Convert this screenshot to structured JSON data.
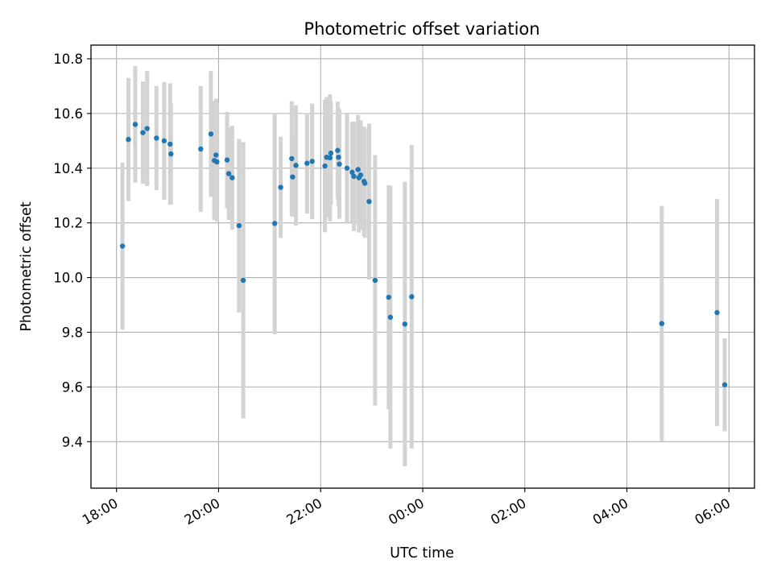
{
  "chart_data": {
    "type": "scatter",
    "title": "Photometric offset variation",
    "xlabel": "UTC time",
    "ylabel": "Photometric offset",
    "xlim": [
      "2024-01-01T17:30",
      "2024-01-02T06:30"
    ],
    "ylim": [
      9.23,
      10.85
    ],
    "grid": true,
    "x_ticks": [
      {
        "value": "2024-01-01T18:00",
        "label": "18:00"
      },
      {
        "value": "2024-01-01T20:00",
        "label": "20:00"
      },
      {
        "value": "2024-01-01T22:00",
        "label": "22:00"
      },
      {
        "value": "2024-01-02T00:00",
        "label": "00:00"
      },
      {
        "value": "2024-01-02T02:00",
        "label": "02:00"
      },
      {
        "value": "2024-01-02T04:00",
        "label": "04:00"
      },
      {
        "value": "2024-01-02T06:00",
        "label": "06:00"
      }
    ],
    "y_ticks": [
      {
        "value": 9.4,
        "label": "9.4"
      },
      {
        "value": 9.6,
        "label": "9.6"
      },
      {
        "value": 9.8,
        "label": "9.8"
      },
      {
        "value": 10.0,
        "label": "10.0"
      },
      {
        "value": 10.2,
        "label": "10.2"
      },
      {
        "value": 10.4,
        "label": "10.4"
      },
      {
        "value": 10.6,
        "label": "10.6"
      },
      {
        "value": 10.8,
        "label": "10.8"
      }
    ],
    "colors": {
      "marker": "#1f77b4",
      "errorbar": "#d3d3d3"
    },
    "series": [
      {
        "x": [
          "2024-01-01T18:07",
          "2024-01-01T18:14",
          "2024-01-01T18:22",
          "2024-01-01T18:31",
          "2024-01-01T18:36",
          "2024-01-01T18:47",
          "2024-01-01T18:56",
          "2024-01-01T19:03",
          "2024-01-01T19:04",
          "2024-01-01T19:39",
          "2024-01-01T19:51",
          "2024-01-01T19:55",
          "2024-01-01T19:57",
          "2024-01-01T19:58",
          "2024-01-01T20:10",
          "2024-01-01T20:12",
          "2024-01-01T20:16",
          "2024-01-01T20:24",
          "2024-01-01T20:29",
          "2024-01-01T21:06",
          "2024-01-01T21:13",
          "2024-01-01T21:26",
          "2024-01-01T21:27",
          "2024-01-01T21:31",
          "2024-01-01T21:44",
          "2024-01-01T21:50",
          "2024-01-01T22:05",
          "2024-01-01T22:07",
          "2024-01-01T22:11",
          "2024-01-01T22:12",
          "2024-01-01T22:20",
          "2024-01-01T22:21",
          "2024-01-01T22:22",
          "2024-01-01T22:31",
          "2024-01-01T22:37",
          "2024-01-01T22:39",
          "2024-01-01T22:44",
          "2024-01-01T22:45",
          "2024-01-01T22:47",
          "2024-01-01T22:51",
          "2024-01-01T22:52",
          "2024-01-01T22:57",
          "2024-01-01T23:04",
          "2024-01-01T23:20",
          "2024-01-01T23:22",
          "2024-01-01T23:39",
          "2024-01-01T23:47",
          "2024-01-02T04:41",
          "2024-01-02T05:46",
          "2024-01-02T05:55"
        ],
        "y": [
          10.115,
          10.505,
          10.56,
          10.53,
          10.545,
          10.51,
          10.5,
          10.488,
          10.452,
          10.47,
          10.525,
          10.428,
          10.448,
          10.423,
          10.43,
          10.38,
          10.365,
          10.19,
          9.99,
          10.198,
          10.33,
          10.435,
          10.368,
          10.41,
          10.418,
          10.425,
          10.408,
          10.44,
          10.438,
          10.455,
          10.465,
          10.44,
          10.415,
          10.4,
          10.385,
          10.37,
          10.395,
          10.365,
          10.375,
          10.352,
          10.345,
          10.278,
          9.99,
          9.928,
          9.855,
          9.83,
          9.93,
          9.832,
          9.872,
          9.608
        ],
        "yerr": [
          0.305,
          0.225,
          0.213,
          0.187,
          0.21,
          0.19,
          0.215,
          0.222,
          0.185,
          0.23,
          0.23,
          0.218,
          0.206,
          0.218,
          0.176,
          0.17,
          0.19,
          0.317,
          0.505,
          0.405,
          0.185,
          0.21,
          0.145,
          0.22,
          0.184,
          0.211,
          0.242,
          0.22,
          0.232,
          0.188,
          0.178,
          0.18,
          0.2,
          0.2,
          0.184,
          0.2,
          0.2,
          0.2,
          0.2,
          0.2,
          0.2,
          0.285,
          0.458,
          0.41,
          0.48,
          0.52,
          0.555,
          0.43,
          0.415,
          0.17
        ]
      }
    ]
  }
}
